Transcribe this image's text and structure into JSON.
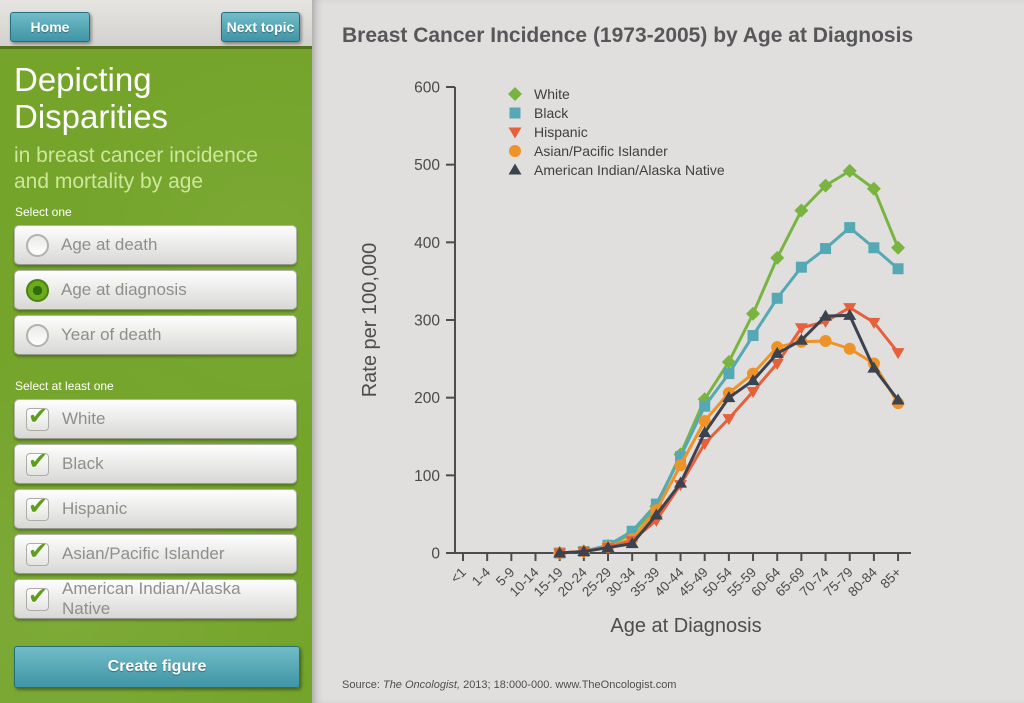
{
  "header": {
    "home_label": "Home",
    "next_topic_label": "Next topic"
  },
  "sidebar": {
    "title_line1": "Depicting",
    "title_line2": "Disparities",
    "subtitle": "in breast cancer incidence and mortality by age",
    "select_one_label": "Select one",
    "radio_options": [
      {
        "label": "Age at death",
        "selected": false
      },
      {
        "label": "Age at diagnosis",
        "selected": true
      },
      {
        "label": "Year of death",
        "selected": false
      }
    ],
    "select_multi_label": "Select at least one",
    "checkbox_options": [
      {
        "label": "White",
        "checked": true
      },
      {
        "label": "Black",
        "checked": true
      },
      {
        "label": "Hispanic",
        "checked": true
      },
      {
        "label": "Asian/Pacific Islander",
        "checked": true
      },
      {
        "label": "American Indian/Alaska Native",
        "checked": true
      }
    ],
    "create_button_label": "Create figure"
  },
  "source": {
    "prefix": "Source: ",
    "journal": "The Oncologist,",
    "rest": " 2013; 18:000-000. www.TheOncologist.com"
  },
  "chart_data": {
    "type": "line",
    "title": "Breast Cancer Incidence (1973-2005) by Age at Diagnosis",
    "xlabel": "Age at Diagnosis",
    "ylabel": "Rate per 100,000",
    "ylim": [
      0,
      600
    ],
    "yticks": [
      0,
      100,
      200,
      300,
      400,
      500,
      600
    ],
    "grid": false,
    "legend_position": "top-left-inside",
    "categories": [
      "<1",
      "1-4",
      "5-9",
      "10-14",
      "15-19",
      "20-24",
      "25-29",
      "30-34",
      "35-39",
      "40-44",
      "45-49",
      "50-54",
      "55-59",
      "60-64",
      "65-69",
      "70-74",
      "75-79",
      "80-84",
      "85+"
    ],
    "series": [
      {
        "name": "White",
        "marker": "diamond",
        "color": "#79b441",
        "values": [
          null,
          null,
          null,
          null,
          0,
          2,
          9,
          25,
          60,
          127,
          198,
          246,
          308,
          380,
          441,
          473,
          492,
          469,
          393
        ]
      },
      {
        "name": "Black",
        "marker": "square",
        "color": "#57a8b5",
        "values": [
          null,
          null,
          null,
          null,
          0,
          2,
          10,
          28,
          63,
          124,
          189,
          231,
          280,
          328,
          368,
          392,
          419,
          393,
          366
        ]
      },
      {
        "name": "Hispanic",
        "marker": "triangle-down",
        "color": "#e5603b",
        "values": [
          null,
          null,
          null,
          null,
          0,
          2,
          7,
          16,
          42,
          88,
          141,
          173,
          208,
          244,
          290,
          298,
          316,
          297,
          258
        ]
      },
      {
        "name": "Asian/Pacific Islander",
        "marker": "circle",
        "color": "#ef9227",
        "values": [
          null,
          null,
          null,
          null,
          0,
          2,
          8,
          18,
          55,
          113,
          170,
          206,
          231,
          265,
          272,
          273,
          263,
          244,
          193
        ]
      },
      {
        "name": "American Indian/Alaska Native",
        "marker": "triangle-up",
        "color": "#3b4250",
        "values": [
          null,
          null,
          null,
          null,
          0,
          2,
          7,
          12,
          49,
          90,
          155,
          200,
          222,
          257,
          274,
          305,
          306,
          238,
          197
        ]
      }
    ]
  }
}
